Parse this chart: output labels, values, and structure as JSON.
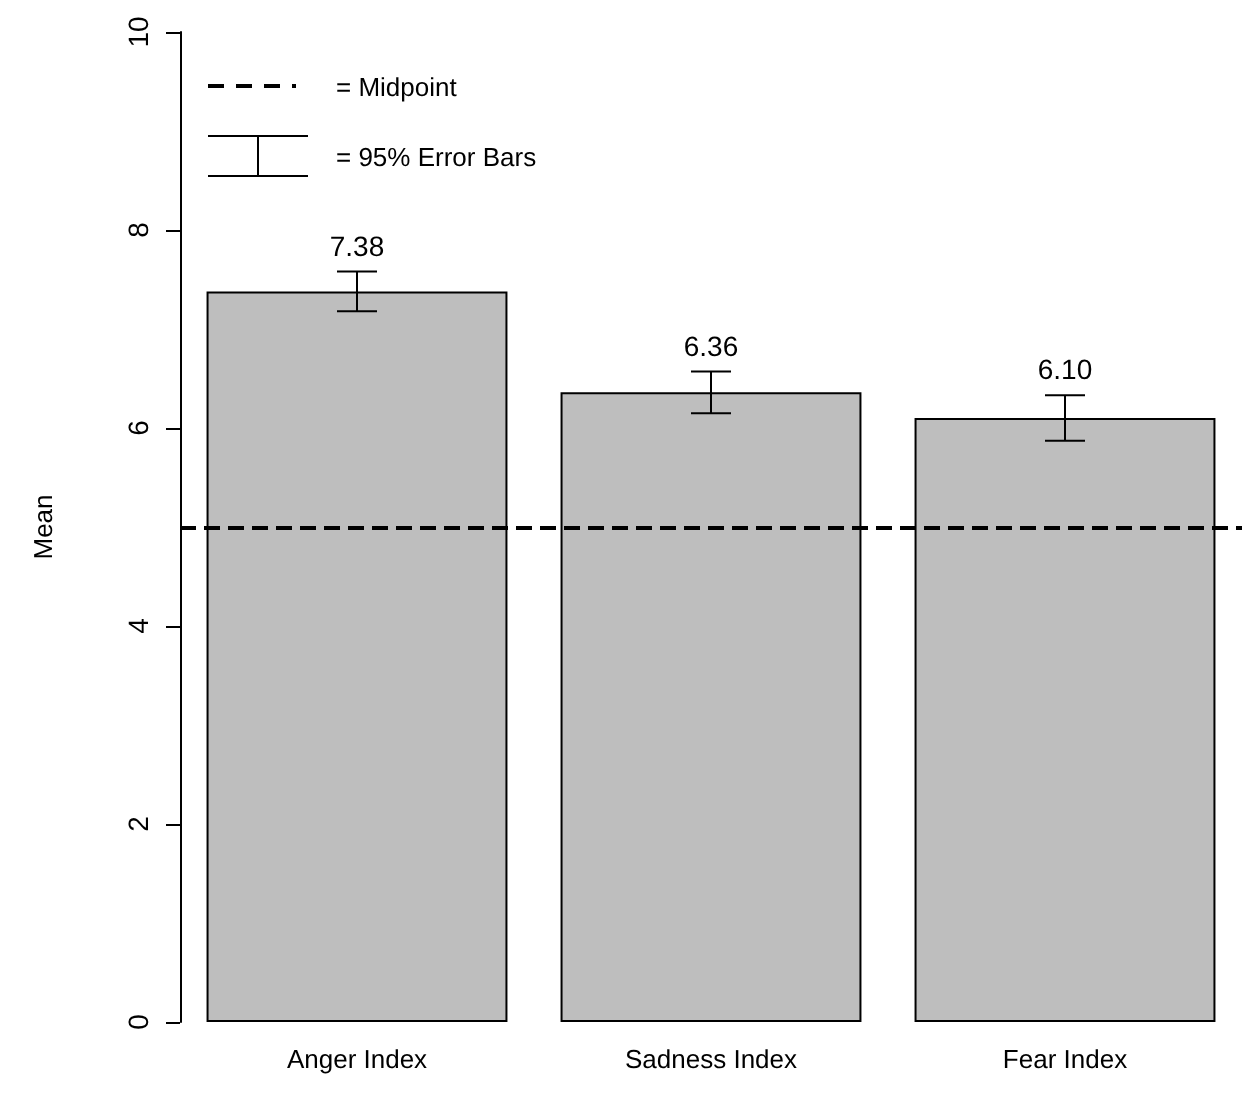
{
  "chart_data": {
    "type": "bar",
    "ylabel": "Mean",
    "categories": [
      "Anger Index",
      "Sadness Index",
      "Fear Index"
    ],
    "values": [
      7.38,
      6.36,
      6.1
    ],
    "value_labels": [
      "7.38",
      "6.36",
      "6.10"
    ],
    "errors": [
      0.2,
      0.21,
      0.23
    ],
    "color": "#bebebe",
    "ylim": [
      0,
      10
    ],
    "yticks": [
      0,
      2,
      4,
      6,
      8,
      10
    ],
    "ref_lines": [
      {
        "axis": "y",
        "value": 5,
        "label": "= Midpoint",
        "line_style": "dashed",
        "color": "#000000"
      }
    ],
    "annotations": [
      "= 95% Error Bars"
    ],
    "legend": "top left"
  }
}
